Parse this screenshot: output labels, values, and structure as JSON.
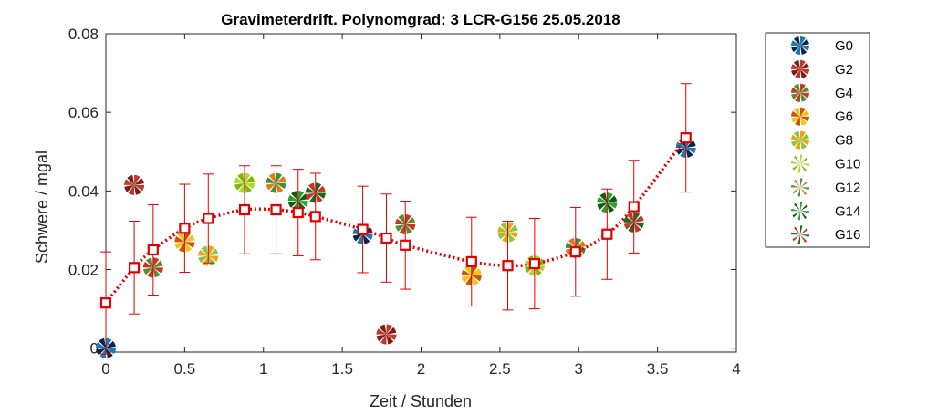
{
  "chart_data": {
    "type": "scatter",
    "title": "Gravimeterdrift. Polynomgrad: 3  LCR-G156  25.05.2018",
    "xlabel": "Zeit / Stunden",
    "ylabel": "Schwere / mgal",
    "xlim": [
      0,
      4
    ],
    "ylim": [
      -0.001,
      0.08
    ],
    "xticks": [
      "0",
      "0.5",
      "1",
      "1.5",
      "2",
      "2.5",
      "3",
      "3.5",
      "4"
    ],
    "yticks": [
      "0",
      "0.02",
      "0.04",
      "0.06",
      "0.08"
    ],
    "legend_position": "outside-right",
    "observations": [
      {
        "name": "G0",
        "colors": [
          "#1f77b4",
          "#0b2545"
        ],
        "points": [
          [
            0.0,
            0.0
          ],
          [
            1.63,
            0.029
          ],
          [
            3.68,
            0.051
          ]
        ]
      },
      {
        "name": "G2",
        "colors": [
          "#c0392b",
          "#7a1f14"
        ],
        "points": [
          [
            0.18,
            0.0415
          ],
          [
            1.78,
            0.0035
          ]
        ]
      },
      {
        "name": "G4",
        "colors": [
          "#c0392b",
          "#5b8c2a"
        ],
        "points": [
          [
            0.3,
            0.0205
          ],
          [
            1.9,
            0.0315
          ]
        ]
      },
      {
        "name": "G6",
        "colors": [
          "#d35400",
          "#f1c40f"
        ],
        "points": [
          [
            0.5,
            0.027
          ],
          [
            2.32,
            0.0185
          ]
        ]
      },
      {
        "name": "G8",
        "colors": [
          "#e6a817",
          "#8cc63f"
        ],
        "points": [
          [
            0.65,
            0.0235
          ],
          [
            2.55,
            0.0295
          ]
        ]
      },
      {
        "name": "G10",
        "colors": [
          "#b5d334",
          "#7fb800"
        ],
        "points": [
          [
            0.88,
            0.042
          ],
          [
            2.72,
            0.021
          ]
        ]
      },
      {
        "name": "G12",
        "colors": [
          "#3d9140",
          "#e07a1f"
        ],
        "points": [
          [
            1.08,
            0.042
          ],
          [
            2.98,
            0.0255
          ]
        ]
      },
      {
        "name": "G14",
        "colors": [
          "#2ca02c",
          "#145a14"
        ],
        "points": [
          [
            1.22,
            0.0375
          ],
          [
            3.18,
            0.037
          ]
        ]
      },
      {
        "name": "G16",
        "colors": [
          "#1e6b1e",
          "#c0392b"
        ],
        "points": [
          [
            1.33,
            0.0395
          ],
          [
            3.35,
            0.032
          ]
        ]
      }
    ],
    "drift_curve": {
      "name": "Drift",
      "color": "#e00000",
      "x": [
        0.0,
        0.18,
        0.3,
        0.5,
        0.65,
        0.88,
        1.08,
        1.22,
        1.33,
        1.63,
        1.78,
        1.9,
        2.32,
        2.55,
        2.72,
        2.98,
        3.18,
        3.35,
        3.68
      ],
      "y": [
        0.0115,
        0.0205,
        0.025,
        0.0305,
        0.033,
        0.0352,
        0.0352,
        0.0345,
        0.0335,
        0.0302,
        0.028,
        0.0262,
        0.022,
        0.021,
        0.0215,
        0.0245,
        0.029,
        0.036,
        0.0535
      ],
      "err": [
        0.013,
        0.0118,
        0.0115,
        0.0112,
        0.0113,
        0.0112,
        0.0112,
        0.011,
        0.011,
        0.011,
        0.0112,
        0.0112,
        0.0113,
        0.0113,
        0.0115,
        0.0113,
        0.0115,
        0.0118,
        0.0138
      ]
    }
  }
}
